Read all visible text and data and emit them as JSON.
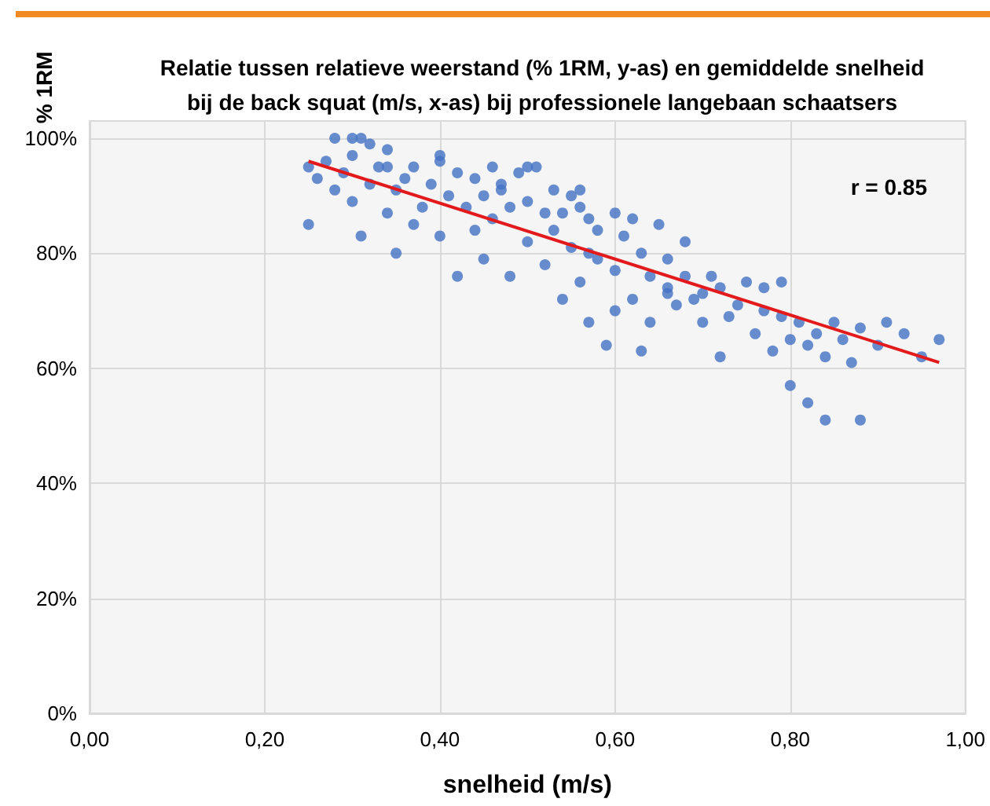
{
  "chart_data": {
    "type": "scatter",
    "title": "Relatie tussen relatieve weerstand (% 1RM, y-as) en gemiddelde snelheid\nbij de back squat (m/s, x-as) bij professionele langebaan schaatsers",
    "xlabel": "snelheid (m/s)",
    "ylabel": "% 1RM",
    "annotations": [
      "r = 0.85"
    ],
    "xlim": [
      0,
      1
    ],
    "ylim": [
      0,
      103
    ],
    "xticks": [
      {
        "value": 0,
        "label": "0,00"
      },
      {
        "value": 0.2,
        "label": "0,20"
      },
      {
        "value": 0.4,
        "label": "0,40"
      },
      {
        "value": 0.6,
        "label": "0,60"
      },
      {
        "value": 0.8,
        "label": "0,80"
      },
      {
        "value": 1,
        "label": "1,00"
      }
    ],
    "yticks": [
      {
        "value": 0,
        "label": "0%"
      },
      {
        "value": 20,
        "label": "20%"
      },
      {
        "value": 40,
        "label": "40%"
      },
      {
        "value": 60,
        "label": "60%"
      },
      {
        "value": 80,
        "label": "80%"
      },
      {
        "value": 100,
        "label": "100%"
      }
    ],
    "grid": true,
    "series": [
      {
        "color": "#4472c4",
        "marker": "circle",
        "x": [
          0.25,
          0.25,
          0.26,
          0.27,
          0.28,
          0.28,
          0.29,
          0.3,
          0.3,
          0.3,
          0.31,
          0.31,
          0.32,
          0.32,
          0.33,
          0.34,
          0.34,
          0.35,
          0.35,
          0.36,
          0.37,
          0.37,
          0.38,
          0.39,
          0.4,
          0.4,
          0.41,
          0.42,
          0.42,
          0.43,
          0.44,
          0.44,
          0.45,
          0.45,
          0.46,
          0.46,
          0.47,
          0.48,
          0.48,
          0.49,
          0.5,
          0.5,
          0.51,
          0.52,
          0.52,
          0.53,
          0.53,
          0.54,
          0.55,
          0.55,
          0.56,
          0.56,
          0.57,
          0.57,
          0.58,
          0.58,
          0.59,
          0.6,
          0.6,
          0.61,
          0.62,
          0.62,
          0.63,
          0.64,
          0.64,
          0.65,
          0.66,
          0.66,
          0.67,
          0.68,
          0.68,
          0.69,
          0.7,
          0.7,
          0.71,
          0.72,
          0.73,
          0.74,
          0.75,
          0.76,
          0.77,
          0.77,
          0.78,
          0.79,
          0.8,
          0.8,
          0.81,
          0.82,
          0.82,
          0.83,
          0.84,
          0.84,
          0.85,
          0.86,
          0.87,
          0.88,
          0.88,
          0.9,
          0.91,
          0.93,
          0.95,
          0.97,
          0.34,
          0.4,
          0.47,
          0.5,
          0.54,
          0.56,
          0.57,
          0.6,
          0.63,
          0.66,
          0.72,
          0.79
        ],
        "values": [
          85,
          95,
          93,
          96,
          100,
          91,
          94,
          100,
          97,
          89,
          100,
          83,
          92,
          99,
          95,
          87,
          98,
          91,
          80,
          93,
          95,
          85,
          88,
          92,
          96,
          83,
          90,
          94,
          76,
          88,
          93,
          84,
          90,
          79,
          95,
          86,
          91,
          88,
          76,
          94,
          89,
          82,
          95,
          87,
          78,
          91,
          84,
          72,
          90,
          81,
          88,
          75,
          86,
          68,
          84,
          79,
          64,
          87,
          77,
          83,
          86,
          72,
          80,
          76,
          68,
          85,
          74,
          79,
          71,
          82,
          76,
          72,
          73,
          68,
          76,
          74,
          69,
          71,
          75,
          66,
          74,
          70,
          63,
          69,
          65,
          57,
          68,
          64,
          54,
          66,
          62,
          51,
          68,
          65,
          61,
          67,
          51,
          64,
          68,
          66,
          62,
          65,
          95,
          97,
          92,
          95,
          87,
          91,
          80,
          70,
          63,
          73,
          62,
          75
        ]
      },
      {
        "type": "line",
        "marker": "none",
        "color": "#e31a1c",
        "x": [
          0.25,
          0.97
        ],
        "values": [
          96,
          61
        ]
      }
    ]
  }
}
